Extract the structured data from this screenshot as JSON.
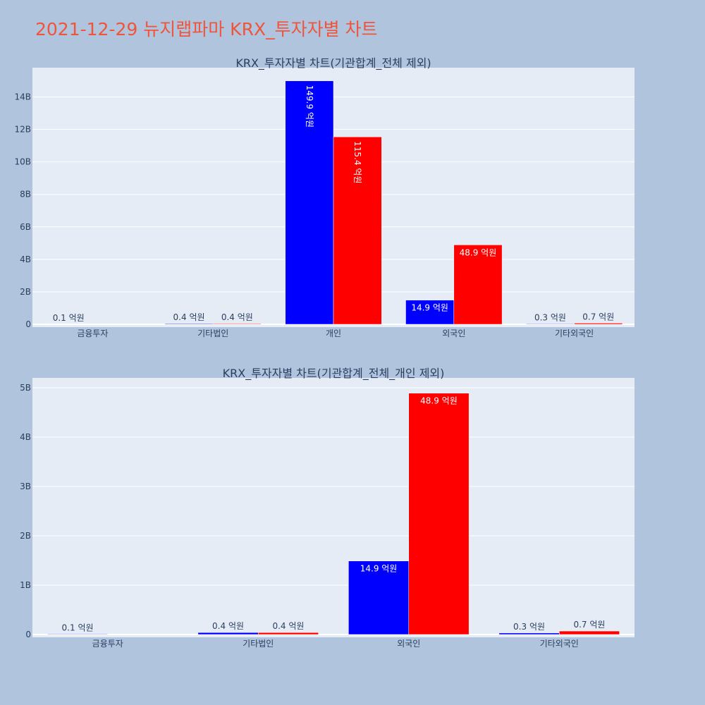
{
  "page_title": "2021-12-29 뉴지랩파마 KRX_투자자별 차트",
  "colors": {
    "buy": "#0000ff",
    "sell": "#ff0000",
    "plot_bg": "#e5ecf6",
    "page_bg": "#b0c4de",
    "title": "#ef553b"
  },
  "chart_data": [
    {
      "type": "bar",
      "title": "KRX_투자자별 차트(기관합계_전체 제외)",
      "categories": [
        "금융투자",
        "기타법인",
        "개인",
        "외국인",
        "기타외국인"
      ],
      "series": [
        {
          "values": [
            10000000,
            40000000,
            14990000000,
            1490000000,
            30000000
          ],
          "labels": [
            "0.1 억원",
            "0.4 억원",
            "149.9 억원",
            "14.9 억원",
            "0.3 억원"
          ]
        },
        {
          "values": [
            0,
            40000000,
            11540000000,
            4890000000,
            70000000
          ],
          "labels": [
            "",
            "0.4 억원",
            "115.4 억원",
            "48.9 억원",
            "0.7 억원"
          ]
        }
      ],
      "ylim": [
        0,
        15800000000
      ],
      "yticks": [
        0,
        2000000000,
        4000000000,
        6000000000,
        8000000000,
        10000000000,
        12000000000,
        14000000000
      ],
      "ytick_labels": [
        "0",
        "2B",
        "4B",
        "6B",
        "8B",
        "10B",
        "12B",
        "14B"
      ],
      "grid": true
    },
    {
      "type": "bar",
      "title": "KRX_투자자별 차트(기관합계_전체_개인 제외)",
      "categories": [
        "금융투자",
        "기타법인",
        "외국인",
        "기타외국인"
      ],
      "series": [
        {
          "values": [
            10000000,
            40000000,
            1490000000,
            30000000
          ],
          "labels": [
            "0.1 억원",
            "0.4 억원",
            "14.9 억원",
            "0.3 억원"
          ]
        },
        {
          "values": [
            0,
            40000000,
            4890000000,
            70000000
          ],
          "labels": [
            "",
            "0.4 억원",
            "48.9 억원",
            "0.7 억원"
          ]
        }
      ],
      "ylim": [
        0,
        5200000000
      ],
      "yticks": [
        0,
        1000000000,
        2000000000,
        3000000000,
        4000000000,
        5000000000
      ],
      "ytick_labels": [
        "0",
        "1B",
        "2B",
        "3B",
        "4B",
        "5B"
      ],
      "grid": true
    }
  ]
}
